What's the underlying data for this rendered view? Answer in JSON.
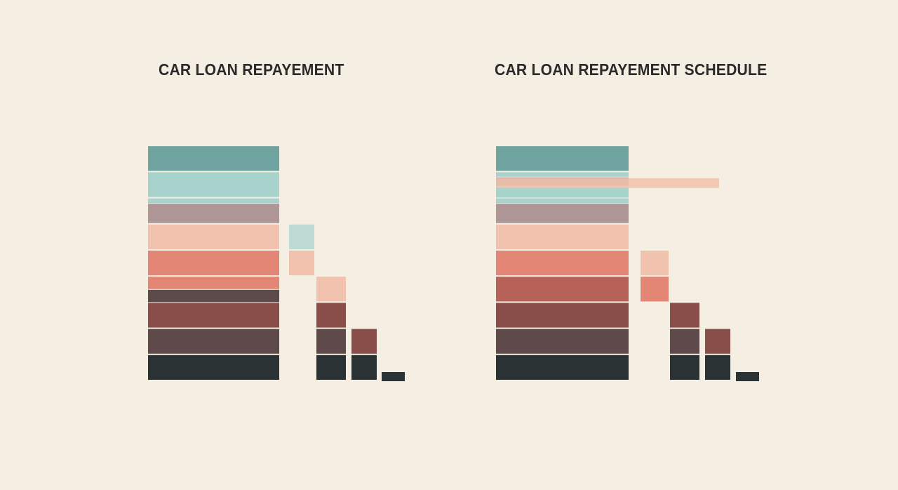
{
  "colors": {
    "background": "#f5efe3",
    "teal": "#6fa3a0",
    "light_teal": "#a7d3cc",
    "mauve": "#ae9796",
    "peach": "#f1c2ad",
    "coral": "#e38675",
    "rust": "#b66258",
    "brown_red": "#8a4e4a",
    "plum_brown": "#5e4a4a",
    "charcoal": "#2b3234",
    "title_text": "#2b2b2b"
  },
  "chart_data": [
    {
      "type": "bar",
      "title": "CAR LOAN REPAYEMENT",
      "xlabel": "",
      "ylabel": "",
      "grid": false,
      "stack": [
        {
          "color": "teal",
          "value": 1
        },
        {
          "color": "light_teal",
          "value": 1
        },
        {
          "color": "light_teal",
          "value": 0.2
        },
        {
          "color": "mauve",
          "value": 0.8
        },
        {
          "color": "peach",
          "value": 1
        },
        {
          "color": "coral",
          "value": 1
        },
        {
          "color": "coral",
          "value": 0.5
        },
        {
          "color": "plum_brown",
          "value": 0.5
        },
        {
          "color": "brown_red",
          "value": 1
        },
        {
          "color": "plum_brown",
          "value": 1
        },
        {
          "color": "charcoal",
          "value": 1
        }
      ],
      "steps": [
        {
          "column": 0,
          "cells": [
            {
              "level": 6,
              "color": "light_teal",
              "opacity": 0.7
            },
            {
              "level": 5,
              "color": "peach"
            }
          ]
        },
        {
          "column": 1,
          "cells": [
            {
              "level": 4,
              "color": "peach"
            },
            {
              "level": 3,
              "color": "brown_red"
            },
            {
              "level": 2,
              "color": "plum_brown"
            },
            {
              "level": 1,
              "color": "charcoal"
            }
          ]
        },
        {
          "column": 2,
          "cells": [
            {
              "level": 2,
              "color": "brown_red"
            },
            {
              "level": 1,
              "color": "charcoal"
            }
          ]
        },
        {
          "column": 3,
          "cells": [
            {
              "level": 0.35,
              "color": "charcoal"
            }
          ]
        }
      ]
    },
    {
      "type": "bar",
      "title": "CAR LOAN REPAYEMENT SCHEDULE",
      "xlabel": "",
      "ylabel": "",
      "grid": false,
      "stack": [
        {
          "color": "teal",
          "value": 1
        },
        {
          "color": "light_teal",
          "value": 0.2
        },
        {
          "color": "mauve",
          "value": 0.35
        },
        {
          "color": "light_teal",
          "value": 0.45
        },
        {
          "color": "light_teal",
          "value": 0.2
        },
        {
          "color": "mauve",
          "value": 0.8
        },
        {
          "color": "peach",
          "value": 1
        },
        {
          "color": "coral",
          "value": 1
        },
        {
          "color": "rust",
          "value": 1
        },
        {
          "color": "brown_red",
          "value": 1
        },
        {
          "color": "plum_brown",
          "value": 1
        },
        {
          "color": "charcoal",
          "value": 1
        }
      ],
      "overlay": {
        "color": "peach",
        "opacity": 0.85
      },
      "steps": [
        {
          "column": 0,
          "cells": [
            {
              "level": 5,
              "color": "peach"
            },
            {
              "level": 4,
              "color": "coral"
            }
          ]
        },
        {
          "column": 1,
          "cells": [
            {
              "level": 3,
              "color": "brown_red"
            },
            {
              "level": 2,
              "color": "plum_brown"
            },
            {
              "level": 1,
              "color": "charcoal"
            }
          ]
        },
        {
          "column": 2,
          "cells": [
            {
              "level": 2,
              "color": "brown_red"
            },
            {
              "level": 1,
              "color": "charcoal"
            }
          ]
        },
        {
          "column": 3,
          "cells": [
            {
              "level": 0.35,
              "color": "charcoal"
            }
          ]
        }
      ]
    }
  ]
}
